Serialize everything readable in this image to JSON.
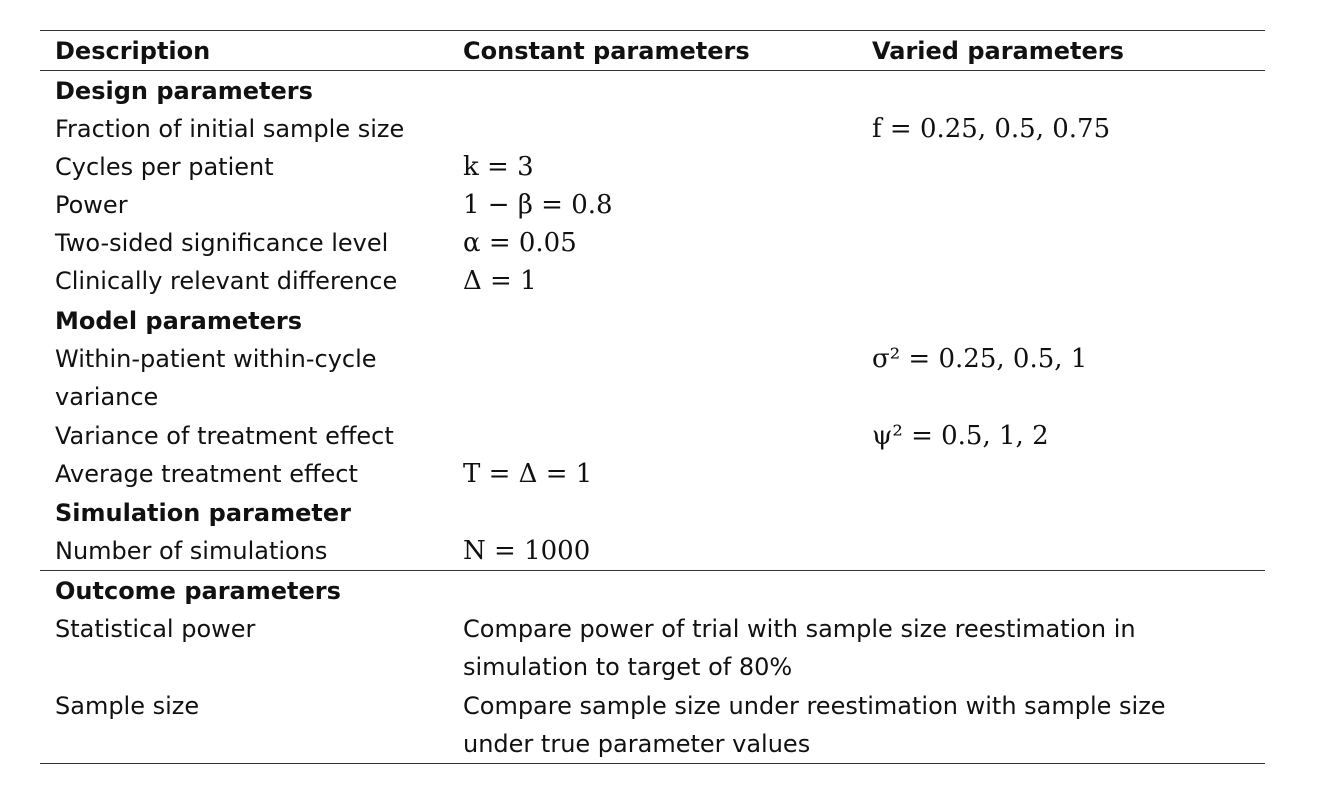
{
  "table": {
    "headers": {
      "description": "Description",
      "constant": "Constant parameters",
      "varied": "Varied parameters"
    },
    "sections": {
      "design": "Design parameters",
      "model": "Model parameters",
      "simulation": "Simulation parameter",
      "outcome": "Outcome parameters"
    },
    "rows": {
      "fraction": {
        "description": "Fraction of initial sample size",
        "varied": "f = 0.25, 0.5, 0.75"
      },
      "cycles": {
        "description": "Cycles per patient",
        "constant": "k = 3"
      },
      "power": {
        "description": "Power",
        "constant": "1 − β = 0.8"
      },
      "alpha": {
        "description": "Two-sided significance level",
        "constant": "α = 0.05"
      },
      "delta": {
        "description": "Clinically relevant difference",
        "constant": "Δ = 1"
      },
      "within_variance": {
        "description_line1": "Within-patient within-cycle",
        "description_line2": "variance",
        "varied": "σ² = 0.25, 0.5, 1"
      },
      "treatment_variance": {
        "description": "Variance of treatment effect",
        "varied": "ψ² = 0.5, 1, 2"
      },
      "avg_effect": {
        "description": "Average treatment effect",
        "constant": "T = Δ = 1"
      },
      "num_sims": {
        "description": "Number of simulations",
        "constant": "N = 1000"
      },
      "stat_power": {
        "description": "Statistical power",
        "outcome_line1": "Compare power of trial with sample size reestimation in",
        "outcome_line2": "simulation to target of 80%"
      },
      "sample_size": {
        "description": "Sample size",
        "outcome_line1": "Compare sample size under reestimation with sample size",
        "outcome_line2": "under true parameter values"
      }
    }
  }
}
